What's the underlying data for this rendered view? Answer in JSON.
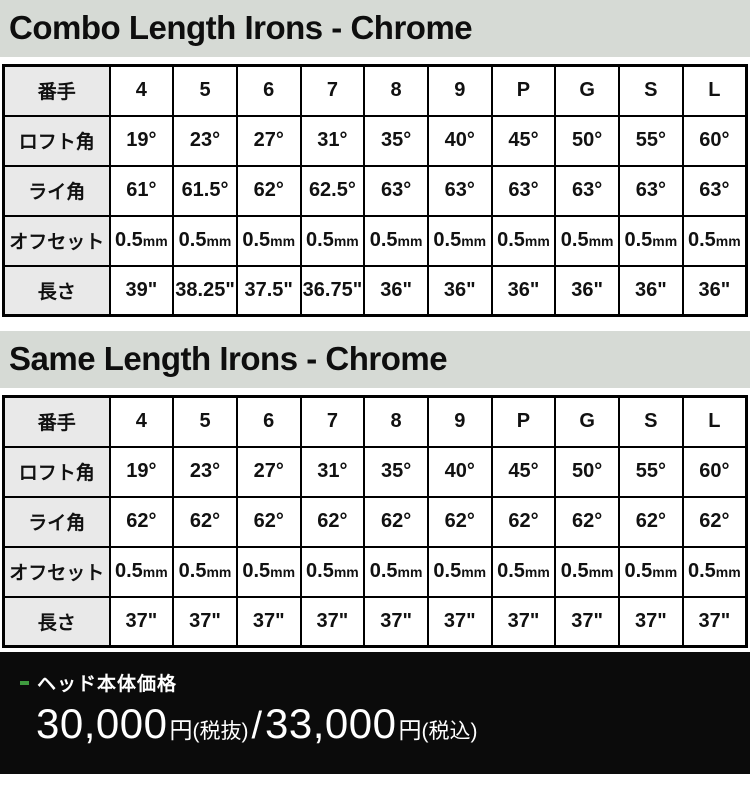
{
  "sections": [
    {
      "title": "Combo Length Irons - Chrome"
    },
    {
      "title": "Same Length Irons - Chrome"
    }
  ],
  "tables": [
    {
      "name": "combo-length-irons",
      "rows": [
        {
          "label": "番手",
          "values": [
            "4",
            "5",
            "6",
            "7",
            "8",
            "9",
            "P",
            "G",
            "S",
            "L"
          ]
        },
        {
          "label": "ロフト角",
          "values": [
            "19°",
            "23°",
            "27°",
            "31°",
            "35°",
            "40°",
            "45°",
            "50°",
            "55°",
            "60°"
          ]
        },
        {
          "label": "ライ角",
          "values": [
            "61°",
            "61.5°",
            "62°",
            "62.5°",
            "63°",
            "63°",
            "63°",
            "63°",
            "63°",
            "63°"
          ]
        },
        {
          "label": "オフセット",
          "values": [
            "0.5mm",
            "0.5mm",
            "0.5mm",
            "0.5mm",
            "0.5mm",
            "0.5mm",
            "0.5mm",
            "0.5mm",
            "0.5mm",
            "0.5mm"
          ]
        },
        {
          "label": "長さ",
          "values": [
            "39\"",
            "38.25\"",
            "37.5\"",
            "36.75\"",
            "36\"",
            "36\"",
            "36\"",
            "36\"",
            "36\"",
            "36\""
          ]
        }
      ]
    },
    {
      "name": "same-length-irons",
      "rows": [
        {
          "label": "番手",
          "values": [
            "4",
            "5",
            "6",
            "7",
            "8",
            "9",
            "P",
            "G",
            "S",
            "L"
          ]
        },
        {
          "label": "ロフト角",
          "values": [
            "19°",
            "23°",
            "27°",
            "31°",
            "35°",
            "40°",
            "45°",
            "50°",
            "55°",
            "60°"
          ]
        },
        {
          "label": "ライ角",
          "values": [
            "62°",
            "62°",
            "62°",
            "62°",
            "62°",
            "62°",
            "62°",
            "62°",
            "62°",
            "62°"
          ]
        },
        {
          "label": "オフセット",
          "values": [
            "0.5mm",
            "0.5mm",
            "0.5mm",
            "0.5mm",
            "0.5mm",
            "0.5mm",
            "0.5mm",
            "0.5mm",
            "0.5mm",
            "0.5mm"
          ]
        },
        {
          "label": "長さ",
          "values": [
            "37\"",
            "37\"",
            "37\"",
            "37\"",
            "37\"",
            "37\"",
            "37\"",
            "37\"",
            "37\"",
            "37\""
          ]
        }
      ]
    }
  ],
  "footer": {
    "label": "ヘッド本体価格",
    "price_excl": "30,000",
    "yen_excl": "円",
    "tax_excl": "(税抜)",
    "slash": "/",
    "price_incl": "33,000",
    "yen_incl": "円",
    "tax_incl": "(税込)",
    "bullet_color": "#3f9b3f"
  },
  "colors": {
    "title_bar_bg": "#d6dad5",
    "row_label_bg": "#e9e9e9",
    "table_border": "#000000",
    "footer_bg": "#0b0b0b"
  }
}
